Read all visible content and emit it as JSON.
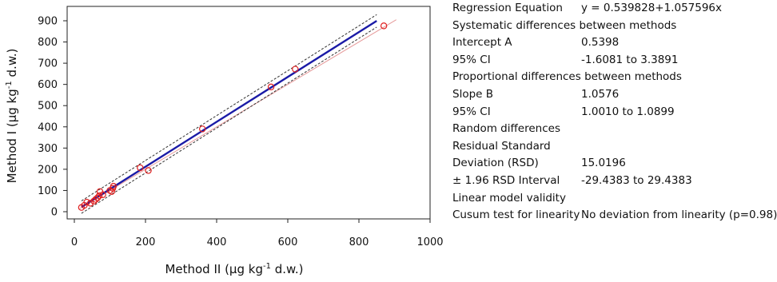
{
  "chart_data": {
    "type": "scatter",
    "xlabel": {
      "pre": "Method II (µg kg",
      "sup": "-1",
      "post": " d.w.)"
    },
    "ylabel": {
      "pre": "Method I (µg kg",
      "sup": "-1",
      "post": " d.w.)"
    },
    "xlim": [
      0,
      1000
    ],
    "ylim": [
      -20,
      950
    ],
    "x_ticks": [
      0,
      200,
      400,
      600,
      800,
      1000
    ],
    "y_ticks": [
      0,
      100,
      200,
      300,
      400,
      500,
      600,
      700,
      800,
      900
    ],
    "grid": false,
    "regression": {
      "intercept": 0.539828,
      "slope": 1.057596,
      "x_range": [
        20,
        850
      ],
      "color": "#1a1aa6"
    },
    "confidence_band": {
      "offset": 29.4383,
      "color": "#333333"
    },
    "identity_line": {
      "color": "#e69a9a",
      "x_range": [
        15,
        905
      ]
    },
    "marker_color": "#e02020",
    "points": [
      {
        "x": 20,
        "y": 20
      },
      {
        "x": 28,
        "y": 30
      },
      {
        "x": 35,
        "y": 45
      },
      {
        "x": 45,
        "y": 40
      },
      {
        "x": 55,
        "y": 50
      },
      {
        "x": 60,
        "y": 58
      },
      {
        "x": 65,
        "y": 65
      },
      {
        "x": 70,
        "y": 75
      },
      {
        "x": 72,
        "y": 95
      },
      {
        "x": 80,
        "y": 80
      },
      {
        "x": 100,
        "y": 100
      },
      {
        "x": 105,
        "y": 95
      },
      {
        "x": 108,
        "y": 110
      },
      {
        "x": 110,
        "y": 120
      },
      {
        "x": 185,
        "y": 207
      },
      {
        "x": 208,
        "y": 194
      },
      {
        "x": 360,
        "y": 390
      },
      {
        "x": 553,
        "y": 588
      },
      {
        "x": 621,
        "y": 672
      },
      {
        "x": 870,
        "y": 876
      }
    ]
  },
  "stats": {
    "rows": [
      {
        "label": "Regression Equation",
        "value": "y = 0.539828+1.057596x"
      },
      {
        "label": "Systematic differences between methods",
        "value": ""
      },
      {
        "label": "Intercept A",
        "value": "0.5398"
      },
      {
        "label": "95% CI",
        "value": "-1.6081 to 3.3891"
      },
      {
        "label": "Proportional differences between methods",
        "value": ""
      },
      {
        "label": "Slope B",
        "value": "1.0576"
      },
      {
        "label": "95% CI",
        "value": "1.0010 to 1.0899"
      },
      {
        "label": "Random differences",
        "value": ""
      },
      {
        "label": "Residual Standard",
        "value": ""
      },
      {
        "label": "Deviation (RSD)",
        "value": "15.0196"
      },
      {
        "label": "± 1.96 RSD Interval",
        "value": "-29.4383 to 29.4383"
      },
      {
        "label": "Linear model validity",
        "value": ""
      },
      {
        "label": "Cusum test for linearity",
        "value": "No deviation from linearity (p=0.98)"
      }
    ]
  }
}
